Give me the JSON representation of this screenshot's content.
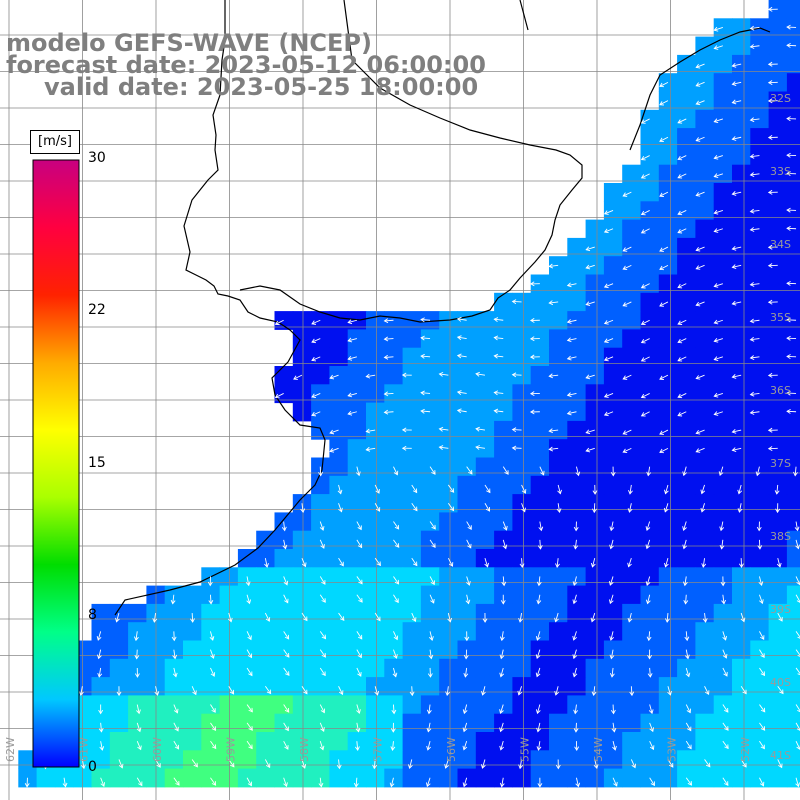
{
  "header": {
    "model": "modelo GEFS-WAVE (NCEP)",
    "forecast": "forecast date: 2023-05-12 06:00:00",
    "valid": "valid date: 2023-05-25 18:00:00"
  },
  "colorbar": {
    "unit": "[m/s]",
    "ticks": [
      "30",
      "22",
      "15",
      "8",
      "0"
    ],
    "stops": [
      "#0000ff",
      "#00c8ff",
      "#00ff88",
      "#00dd00",
      "#aaff00",
      "#ffff00",
      "#ffaa00",
      "#ff2200",
      "#ff0040",
      "#c80080"
    ]
  },
  "grid": {
    "lat_labels": [
      "32S",
      "33S",
      "34S",
      "35S",
      "36S",
      "37S",
      "38S",
      "39S",
      "40S",
      "41S"
    ],
    "lon_labels": [
      "62W",
      "61W",
      "60W",
      "59W",
      "58W",
      "57W",
      "56W",
      "55W",
      "54W",
      "53W",
      "52W"
    ]
  },
  "colors": {
    "land": "#ffffff",
    "gridline": "#888888",
    "coast": "#000000",
    "arrow": "#ffffff",
    "label": "#7f7f7f"
  }
}
